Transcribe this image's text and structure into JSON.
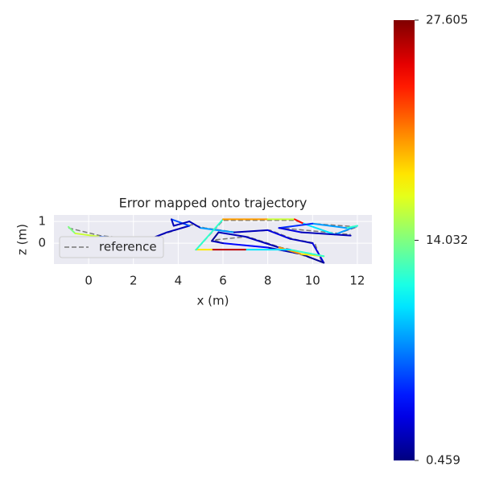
{
  "chart_data": {
    "type": "trajectory",
    "title": "Error mapped onto trajectory",
    "xlabel": "x (m)",
    "ylabel": "z (m)",
    "xlim": [
      -1.55,
      12.65
    ],
    "ylim": [
      -0.96,
      1.3
    ],
    "xticks": [
      0,
      2,
      4,
      6,
      8,
      10,
      12
    ],
    "yticks": [
      0,
      1
    ],
    "grid": true,
    "legend_loc": "lower left",
    "colormap": "jet",
    "clim": [
      0.459,
      27.605
    ],
    "cticks": [
      0.459,
      14.032,
      27.605
    ],
    "reference": {
      "name": "reference",
      "color": "#777777",
      "x": [
        -0.9,
        0.5,
        2.5,
        3.6,
        4.6,
        5.2,
        6.6,
        8.1,
        9.1,
        10.1,
        10.4,
        9.4,
        8,
        6,
        5.6,
        7.1,
        8.6,
        10.4,
        9,
        7,
        4.8,
        6,
        8.1,
        9.2,
        11,
        12,
        10,
        8.6,
        11.7
      ],
      "z": [
        0.7,
        0.35,
        0.15,
        0.5,
        0.85,
        0.7,
        0.5,
        0.6,
        0.2,
        0,
        -0.85,
        -0.5,
        -0.2,
        0,
        0.15,
        0.3,
        -0.2,
        -0.6,
        -0.3,
        -0.3,
        -0.3,
        1.05,
        1.05,
        1.05,
        0.4,
        0.75,
        0.9,
        0.7,
        0.4
      ]
    },
    "trajectory": {
      "x": [
        -0.9,
        -0.6,
        0.5,
        1.5,
        2.5,
        3.5,
        4.5,
        3.7,
        3.8,
        4.5,
        5,
        6.5,
        8,
        9,
        10,
        10.5,
        9.5,
        8,
        6,
        5.5,
        5.8,
        7,
        8.5,
        9.5,
        10.5,
        9,
        7,
        5.5,
        4.8,
        6,
        8,
        9.2,
        9.6,
        11,
        12,
        11.5,
        10,
        8.5,
        9.5,
        11.7
      ],
      "z": [
        0.75,
        0.45,
        0.3,
        0.25,
        0.1,
        0.5,
        0.8,
        1.1,
        0.8,
        1.0,
        0.7,
        0.5,
        0.6,
        0.2,
        0,
        -0.9,
        -0.5,
        -0.2,
        0,
        0.1,
        0.5,
        0.3,
        -0.2,
        -0.5,
        -0.6,
        -0.3,
        -0.3,
        -0.3,
        -0.3,
        1.1,
        1.1,
        1.1,
        0.9,
        0.4,
        0.8,
        0.7,
        0.9,
        0.7,
        0.5,
        0.35
      ],
      "error": [
        14,
        16,
        6,
        3,
        2,
        2,
        6,
        2,
        2,
        2,
        8,
        2,
        3,
        2,
        3,
        1,
        2,
        4,
        2,
        1,
        2,
        2,
        20,
        18,
        12,
        10,
        26,
        18,
        12,
        20,
        16,
        24,
        10,
        8,
        12,
        8,
        5,
        3,
        2,
        4
      ]
    }
  }
}
